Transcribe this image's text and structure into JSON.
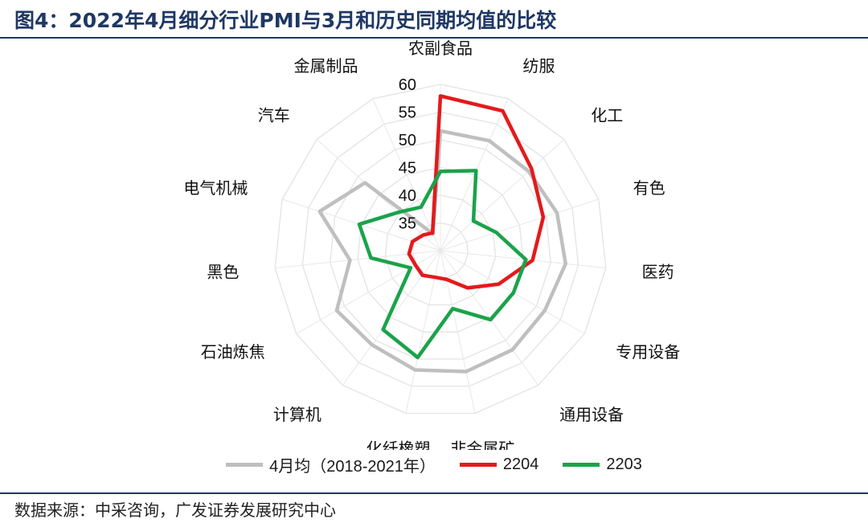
{
  "header": {
    "title": "图4：2022年4月细分行业PMI与3月和历史同期均值的比较"
  },
  "footer": {
    "source": "数据来源：中采咨询，广发证券发展研究中心"
  },
  "chart_data": {
    "type": "radar",
    "title": "图4：2022年4月细分行业PMI与3月和历史同期均值的比较",
    "categories": [
      "农副食品",
      "纺服",
      "化工",
      "有色",
      "医药",
      "专用设备",
      "通用设备",
      "非金属矿",
      "化纤橡塑",
      "计算机",
      "石油炼焦",
      "黑色",
      "电气机械",
      "汽车",
      "金属制品"
    ],
    "radial_axis": {
      "min": 30,
      "max": 60,
      "ticks": [
        35,
        40,
        45,
        50,
        55,
        60
      ]
    },
    "grid": true,
    "legend_position": "bottom",
    "series": [
      {
        "name": "4月均（2018-2021年）",
        "color": "#bfbfbf",
        "values": [
          51.6,
          51.7,
          51.4,
          52.1,
          52.7,
          51.7,
          52.1,
          52.3,
          52.0,
          51.0,
          51.6,
          46.4,
          52.9,
          48.3,
          33.3
        ]
      },
      {
        "name": "2204",
        "color": "#e31a1c",
        "values": [
          57.9,
          57.6,
          52.1,
          49.5,
          46.7,
          42.1,
          38.3,
          35.3,
          34.9,
          35.5,
          35.2,
          35.7,
          35.3,
          34.2,
          33.5
        ]
      },
      {
        "name": "2203",
        "color": "#1aa34a",
        "values": [
          44.3,
          45.8,
          38.0,
          40.6,
          45.5,
          45.2,
          45.4,
          40.7,
          49.7,
          47.6,
          36.2,
          42.6,
          45.4,
          40.3,
          38.6
        ]
      }
    ]
  }
}
